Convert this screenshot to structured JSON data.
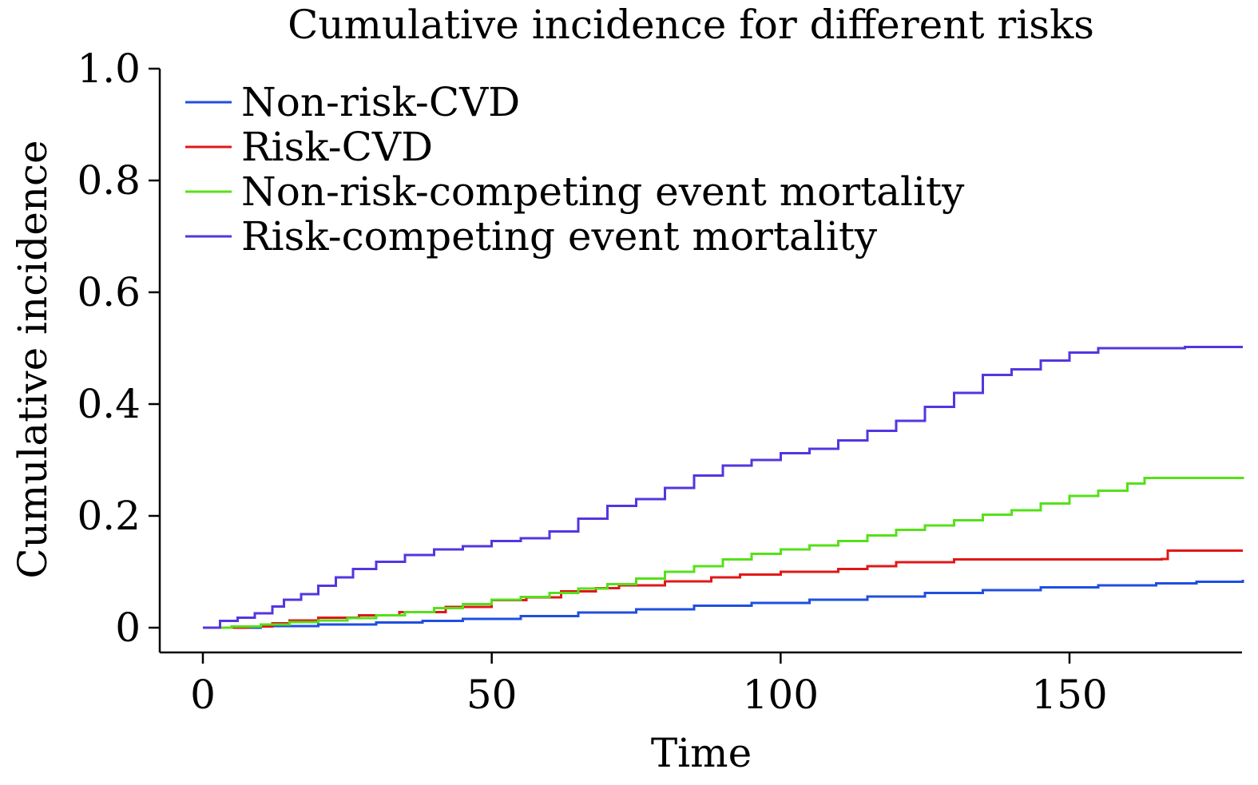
{
  "chart_data": {
    "type": "line",
    "step": true,
    "title": "Cumulative incidence for different risks",
    "xlabel": "Time",
    "ylabel": "Cumulative incidence",
    "xlim": [
      -7,
      181
    ],
    "ylim": [
      -0.04,
      1.0
    ],
    "x_ticks": [
      0,
      50,
      100,
      150
    ],
    "x_tick_labels": [
      "0",
      "50",
      "100",
      "150"
    ],
    "y_ticks": [
      0,
      0.2,
      0.4,
      0.6,
      0.8,
      1.0
    ],
    "y_tick_labels": [
      "0",
      "0.2",
      "0.4",
      "0.6",
      "0.8",
      "1.0"
    ],
    "grid": false,
    "legend_position": "top-left",
    "series": [
      {
        "name": "Non-risk-CVD",
        "color": "#1f4fe0",
        "points": [
          [
            0,
            0
          ],
          [
            10,
            0.003
          ],
          [
            20,
            0.006
          ],
          [
            30,
            0.009
          ],
          [
            38,
            0.012
          ],
          [
            45,
            0.016
          ],
          [
            55,
            0.021
          ],
          [
            65,
            0.027
          ],
          [
            75,
            0.033
          ],
          [
            85,
            0.039
          ],
          [
            95,
            0.044
          ],
          [
            105,
            0.05
          ],
          [
            115,
            0.056
          ],
          [
            125,
            0.062
          ],
          [
            135,
            0.067
          ],
          [
            145,
            0.072
          ],
          [
            155,
            0.076
          ],
          [
            165,
            0.079
          ],
          [
            172,
            0.082
          ],
          [
            180,
            0.086
          ]
        ]
      },
      {
        "name": "Risk-CVD",
        "color": "#e01818",
        "points": [
          [
            0,
            0
          ],
          [
            8,
            0.002
          ],
          [
            12,
            0.008
          ],
          [
            15,
            0.013
          ],
          [
            20,
            0.018
          ],
          [
            27,
            0.022
          ],
          [
            34,
            0.028
          ],
          [
            42,
            0.037
          ],
          [
            50,
            0.049
          ],
          [
            56,
            0.054
          ],
          [
            62,
            0.065
          ],
          [
            68,
            0.071
          ],
          [
            72,
            0.076
          ],
          [
            80,
            0.083
          ],
          [
            88,
            0.09
          ],
          [
            93,
            0.095
          ],
          [
            100,
            0.1
          ],
          [
            110,
            0.105
          ],
          [
            115,
            0.11
          ],
          [
            120,
            0.117
          ],
          [
            130,
            0.122
          ],
          [
            150,
            0.122
          ],
          [
            166,
            0.123
          ],
          [
            167,
            0.138
          ],
          [
            180,
            0.138
          ]
        ]
      },
      {
        "name": "Non-risk-competing event mortality",
        "color": "#55e01a",
        "points": [
          [
            0,
            0
          ],
          [
            5,
            0.002
          ],
          [
            10,
            0.006
          ],
          [
            15,
            0.01
          ],
          [
            20,
            0.013
          ],
          [
            25,
            0.017
          ],
          [
            30,
            0.022
          ],
          [
            35,
            0.028
          ],
          [
            40,
            0.035
          ],
          [
            45,
            0.042
          ],
          [
            50,
            0.05
          ],
          [
            55,
            0.055
          ],
          [
            60,
            0.062
          ],
          [
            65,
            0.07
          ],
          [
            70,
            0.078
          ],
          [
            75,
            0.088
          ],
          [
            80,
            0.1
          ],
          [
            85,
            0.11
          ],
          [
            90,
            0.122
          ],
          [
            95,
            0.132
          ],
          [
            100,
            0.14
          ],
          [
            105,
            0.147
          ],
          [
            110,
            0.155
          ],
          [
            115,
            0.165
          ],
          [
            120,
            0.175
          ],
          [
            125,
            0.183
          ],
          [
            130,
            0.192
          ],
          [
            135,
            0.202
          ],
          [
            140,
            0.21
          ],
          [
            145,
            0.222
          ],
          [
            150,
            0.236
          ],
          [
            155,
            0.245
          ],
          [
            160,
            0.258
          ],
          [
            163,
            0.268
          ],
          [
            170,
            0.268
          ],
          [
            180,
            0.27
          ]
        ]
      },
      {
        "name": "Risk-competing event mortality",
        "color": "#5535e0",
        "points": [
          [
            0,
            0
          ],
          [
            3,
            0.012
          ],
          [
            6,
            0.018
          ],
          [
            9,
            0.026
          ],
          [
            12,
            0.038
          ],
          [
            14,
            0.05
          ],
          [
            17,
            0.06
          ],
          [
            20,
            0.075
          ],
          [
            23,
            0.09
          ],
          [
            26,
            0.105
          ],
          [
            30,
            0.118
          ],
          [
            35,
            0.13
          ],
          [
            40,
            0.14
          ],
          [
            45,
            0.146
          ],
          [
            50,
            0.155
          ],
          [
            55,
            0.16
          ],
          [
            60,
            0.172
          ],
          [
            65,
            0.195
          ],
          [
            70,
            0.218
          ],
          [
            75,
            0.23
          ],
          [
            80,
            0.25
          ],
          [
            85,
            0.272
          ],
          [
            90,
            0.29
          ],
          [
            95,
            0.3
          ],
          [
            100,
            0.312
          ],
          [
            105,
            0.32
          ],
          [
            110,
            0.335
          ],
          [
            115,
            0.352
          ],
          [
            120,
            0.37
          ],
          [
            125,
            0.395
          ],
          [
            130,
            0.42
          ],
          [
            135,
            0.452
          ],
          [
            140,
            0.462
          ],
          [
            145,
            0.478
          ],
          [
            150,
            0.492
          ],
          [
            155,
            0.5
          ],
          [
            170,
            0.502
          ],
          [
            180,
            0.502
          ]
        ]
      }
    ]
  }
}
